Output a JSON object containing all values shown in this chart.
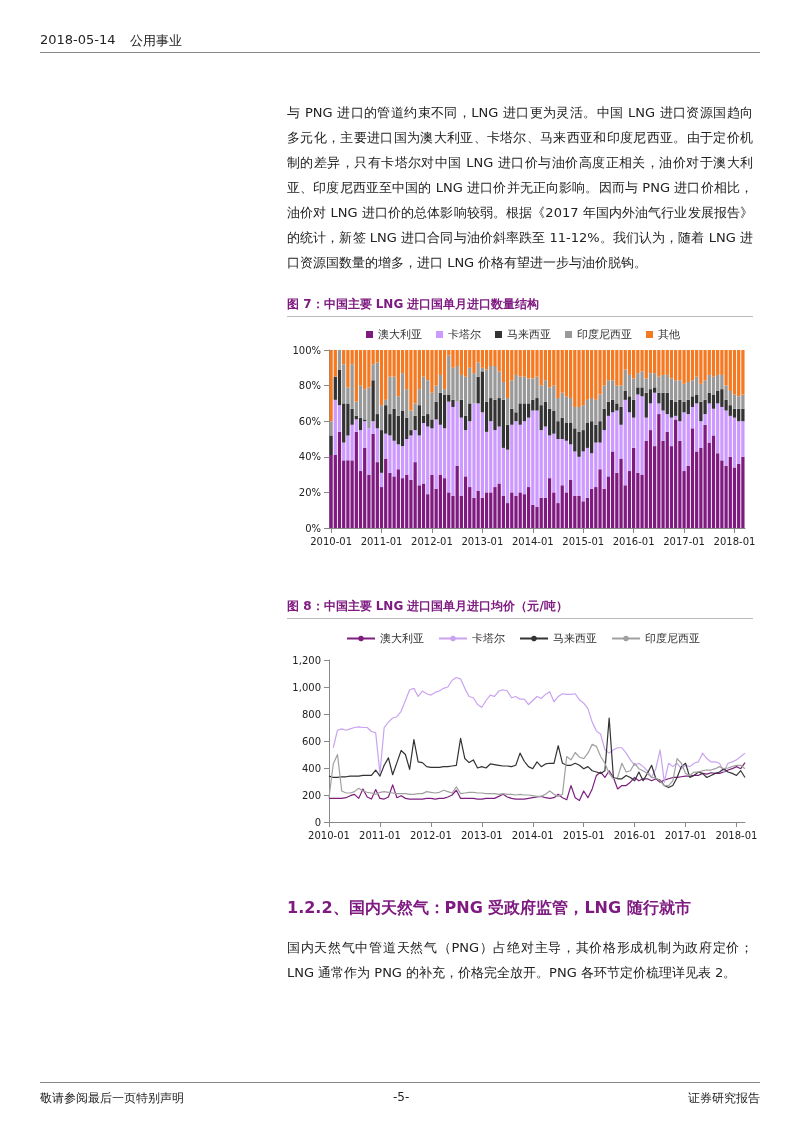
{
  "chart_data": [
    {
      "type": "bar",
      "title": "图 7：中国主要 LNG 进口国单月进口数量结构",
      "stacked": true,
      "legend": "top",
      "annotations": [
        "2018-05-14",
        "公用事业",
        "与 PNG 进口的管道约束不同，LNG 进口更为灵活。中国 LNG 进口资源国趋向多元化，主要进口国为澳大利亚、卡塔尔、马来西亚和印度尼西亚。由于定价机制的差异，只有卡塔尔对中国 LNG 进口价与油价高度正相关，油价对于澳大利亚、印度尼西亚至中国的 LNG 进口价并无正向影响。因而与 PNG 进口价相比，油价对 LNG 进口价的总体影响较弱。根据《2017 年国内外油气行业发展报告》的统计，新签 LNG 进口合同与油价斜率跌至 11-12%。我们认为，随着 LNG 进口资源国数量的增多，进口 LNG 价格有望进一步与油价脱钩。"
      ],
      "categories": [
        "2010-01",
        null,
        null,
        null,
        null,
        null,
        null,
        null,
        null,
        null,
        null,
        null,
        "2011-01",
        null,
        null,
        null,
        null,
        null,
        null,
        null,
        null,
        null,
        null,
        null,
        "2012-01",
        null,
        null,
        null,
        null,
        null,
        null,
        null,
        null,
        null,
        null,
        null,
        "2013-01",
        null,
        null,
        null,
        null,
        null,
        null,
        null,
        null,
        null,
        null,
        null,
        "2014-01",
        null,
        null,
        null,
        null,
        null,
        null,
        null,
        null,
        null,
        null,
        null,
        "2015-01",
        null,
        null,
        null,
        null,
        null,
        null,
        null,
        null,
        null,
        null,
        null,
        "2016-01",
        null,
        null,
        null,
        null,
        null,
        null,
        null,
        null,
        null,
        null,
        null,
        "2017-01",
        null,
        null,
        null,
        null,
        null,
        null,
        null,
        null,
        null,
        null,
        null,
        "2018-01",
        null,
        null
      ],
      "ylim": [
        0,
        100
      ],
      "yticks": [
        {
          "value": 0,
          "label": "0%"
        },
        {
          "value": 20,
          "label": "20%"
        },
        {
          "value": 40,
          "label": "40%"
        },
        {
          "value": 60,
          "label": "60%"
        },
        {
          "value": 80,
          "label": "80%"
        },
        {
          "value": 100,
          "label": "100%"
        }
      ],
      "series": [
        {
          "name": "澳大利亚",
          "color": "#7e1a80",
          "values": [
            41,
            41,
            54,
            38,
            38,
            38,
            54,
            32,
            45,
            30,
            53,
            37,
            23,
            39,
            31,
            29,
            33,
            28,
            30,
            27,
            37,
            24,
            25,
            19,
            30,
            22,
            30,
            28,
            20,
            18,
            35,
            18,
            29,
            23,
            17,
            21,
            17,
            20,
            20,
            23,
            25,
            18,
            14,
            20,
            18,
            20,
            19,
            23,
            13,
            12,
            17,
            17,
            28,
            20,
            14,
            24,
            20,
            27,
            18,
            18,
            15,
            17,
            22,
            23,
            33,
            22,
            29,
            43,
            31,
            39,
            24,
            32,
            45,
            31,
            30,
            49,
            55,
            46,
            64,
            49,
            54,
            46,
            61,
            49,
            32,
            35,
            56,
            43,
            45,
            58,
            48,
            52,
            42,
            38,
            35,
            40,
            34,
            36,
            40
          ]
        },
        {
          "name": "卡塔尔",
          "color": "#cc99ff",
          "values": [
            0,
            31,
            15,
            10,
            14,
            20,
            7,
            23,
            15,
            26,
            7,
            19,
            8,
            14,
            21,
            20,
            14,
            18,
            20,
            25,
            18,
            28,
            34,
            38,
            26,
            39,
            28,
            28,
            51,
            50,
            36,
            44,
            26,
            37,
            53,
            49,
            48,
            34,
            40,
            32,
            32,
            27,
            30,
            38,
            42,
            38,
            41,
            39,
            53,
            54,
            38,
            40,
            24,
            33,
            36,
            26,
            29,
            20,
            25,
            22,
            28,
            28,
            20,
            25,
            15,
            33,
            34,
            22,
            35,
            19,
            48,
            33,
            17,
            44,
            44,
            13,
            15,
            30,
            6,
            17,
            10,
            16,
            2,
            11,
            33,
            29,
            12,
            27,
            15,
            6,
            22,
            15,
            28,
            30,
            31,
            23,
            28,
            24,
            20
          ]
        },
        {
          "name": "马来西亚",
          "color": "#333333",
          "values": [
            11,
            13,
            20,
            22,
            18,
            9,
            2,
            7,
            1,
            0,
            23,
            8,
            24,
            16,
            12,
            18,
            16,
            20,
            12,
            3,
            8,
            17,
            4,
            7,
            5,
            10,
            18,
            19,
            4,
            4,
            0,
            10,
            8,
            10,
            0,
            15,
            23,
            17,
            13,
            17,
            16,
            27,
            14,
            9,
            5,
            12,
            10,
            8,
            6,
            7,
            14,
            14,
            15,
            13,
            10,
            12,
            10,
            12,
            13,
            14,
            12,
            14,
            18,
            10,
            12,
            12,
            8,
            7,
            4,
            10,
            5,
            9,
            10,
            4,
            5,
            14,
            8,
            3,
            6,
            10,
            12,
            10,
            8,
            12,
            6,
            8,
            6,
            5,
            11,
            8,
            6,
            8,
            7,
            10,
            6,
            6,
            5,
            7,
            7
          ]
        },
        {
          "name": "印度尼西亚",
          "color": "#999999",
          "values": [
            8,
            0,
            11,
            22,
            9,
            25,
            8,
            18,
            17,
            23,
            9,
            29,
            14,
            3,
            21,
            18,
            11,
            21,
            16,
            11,
            7,
            9,
            22,
            19,
            15,
            9,
            10,
            3,
            22,
            18,
            20,
            14,
            22,
            20,
            17,
            8,
            2,
            18,
            18,
            19,
            15,
            10,
            15,
            16,
            21,
            15,
            15,
            14,
            12,
            12,
            11,
            12,
            12,
            14,
            13,
            14,
            15,
            14,
            12,
            14,
            14,
            13,
            13,
            14,
            15,
            13,
            12,
            11,
            10,
            12,
            12,
            12,
            12,
            8,
            9,
            8,
            9,
            8,
            9,
            10,
            10,
            12,
            12,
            11,
            10,
            10,
            9,
            10,
            10,
            11,
            10,
            10,
            9,
            8,
            8,
            8,
            8,
            7,
            8
          ]
        },
        {
          "name": "其他",
          "color": "#f47920",
          "values": [
            40,
            15,
            0,
            8,
            21,
            8,
            29,
            20,
            22,
            21,
            8,
            7,
            31,
            28,
            15,
            15,
            26,
            13,
            22,
            34,
            30,
            22,
            15,
            17,
            24,
            20,
            14,
            22,
            3,
            10,
            9,
            14,
            15,
            10,
            13,
            7,
            10,
            11,
            9,
            9,
            12,
            18,
            27,
            17,
            14,
            15,
            15,
            16,
            16,
            15,
            20,
            17,
            21,
            20,
            27,
            24,
            26,
            27,
            32,
            32,
            31,
            28,
            27,
            28,
            25,
            20,
            17,
            17,
            20,
            20,
            11,
            14,
            16,
            13,
            12,
            16,
            13,
            13,
            15,
            14,
            14,
            16,
            17,
            17,
            19,
            18,
            17,
            15,
            19,
            17,
            14,
            15,
            14,
            14,
            20,
            23,
            25,
            26,
            25
          ]
        }
      ]
    },
    {
      "type": "line",
      "title": "图 8：中国主要 LNG 进口国单月进口均价（元/吨）",
      "legend": "top",
      "marker": "none",
      "annotations": [
        "1.2.2、国内天然气：PNG 受政府监管，LNG 随行就市",
        "国内天然气中管道天然气（PNG）占绝对主导，其价格形成机制为政府定价；LNG 通常作为 PNG 的补充，价格完全放开。PNG 各环节定价梳理详见表 2。",
        "敬请参阅最后一页特别声明",
        "-5-",
        "证券研究报告"
      ],
      "categories": [
        "2010-01",
        null,
        null,
        null,
        null,
        null,
        null,
        null,
        null,
        null,
        null,
        null,
        "2011-01",
        null,
        null,
        null,
        null,
        null,
        null,
        null,
        null,
        null,
        null,
        null,
        "2012-01",
        null,
        null,
        null,
        null,
        null,
        null,
        null,
        null,
        null,
        null,
        null,
        "2013-01",
        null,
        null,
        null,
        null,
        null,
        null,
        null,
        null,
        null,
        null,
        null,
        "2014-01",
        null,
        null,
        null,
        null,
        null,
        null,
        null,
        null,
        null,
        null,
        null,
        "2015-01",
        null,
        null,
        null,
        null,
        null,
        null,
        null,
        null,
        null,
        null,
        null,
        "2016-01",
        null,
        null,
        null,
        null,
        null,
        null,
        null,
        null,
        null,
        null,
        null,
        "2017-01",
        null,
        null,
        null,
        null,
        null,
        null,
        null,
        null,
        null,
        null,
        null,
        "2018-01",
        null,
        null
      ],
      "ylim": [
        0,
        1200
      ],
      "yticks": [
        0,
        200,
        400,
        600,
        800,
        {
          "value": 1000,
          "label": "1,000"
        },
        {
          "value": 1200,
          "label": "1,200"
        }
      ],
      "series": [
        {
          "name": "澳大利亚",
          "color": "#7e1f80",
          "values": [
            175,
            175,
            175,
            175,
            180,
            195,
            205,
            175,
            245,
            185,
            170,
            240,
            175,
            170,
            185,
            275,
            180,
            195,
            175,
            170,
            170,
            170,
            170,
            175,
            175,
            170,
            175,
            175,
            185,
            200,
            235,
            175,
            175,
            175,
            175,
            170,
            170,
            175,
            175,
            175,
            190,
            205,
            185,
            175,
            170,
            170,
            170,
            175,
            180,
            185,
            190,
            180,
            175,
            180,
            205,
            180,
            165,
            270,
            180,
            160,
            230,
            180,
            245,
            345,
            370,
            330,
            380,
            330,
            245,
            270,
            270,
            295,
            330,
            305,
            320,
            320,
            305,
            320,
            295,
            310,
            320,
            330,
            330,
            335,
            340,
            340,
            345,
            345,
            360,
            355,
            365,
            360,
            360,
            370,
            385,
            395,
            410,
            395,
            440
          ]
        },
        {
          "name": "卡塔尔",
          "color": "#c9a3f0",
          "values": [
            null,
            550,
            680,
            690,
            680,
            690,
            700,
            705,
            700,
            700,
            670,
            660,
            360,
            700,
            740,
            770,
            780,
            820,
            900,
            980,
            990,
            930,
            970,
            950,
            940,
            960,
            970,
            990,
            1000,
            1050,
            1070,
            1060,
            990,
            930,
            920,
            870,
            850,
            900,
            940,
            930,
            970,
            980,
            970,
            920,
            930,
            910,
            910,
            870,
            900,
            930,
            915,
            945,
            965,
            890,
            930,
            950,
            945,
            945,
            950,
            905,
            880,
            840,
            740,
            675,
            650,
            535,
            510,
            535,
            550,
            550,
            510,
            460,
            420,
            435,
            410,
            380,
            330,
            395,
            535,
            295,
            435,
            410,
            435,
            395,
            420,
            410,
            435,
            445,
            510,
            470,
            445,
            445,
            435,
            370,
            435,
            445,
            460,
            485,
            510
          ]
        },
        {
          "name": "马来西亚",
          "color": "#333333",
          "values": [
            340,
            330,
            330,
            335,
            335,
            340,
            340,
            340,
            345,
            345,
            345,
            385,
            340,
            420,
            475,
            350,
            440,
            530,
            500,
            390,
            610,
            445,
            440,
            410,
            405,
            405,
            405,
            410,
            410,
            415,
            420,
            620,
            470,
            440,
            460,
            400,
            410,
            400,
            430,
            425,
            420,
            415,
            415,
            410,
            420,
            510,
            450,
            410,
            395,
            445,
            410,
            430,
            435,
            435,
            565,
            435,
            420,
            420,
            435,
            420,
            395,
            410,
            380,
            370,
            360,
            380,
            770,
            330,
            320,
            320,
            345,
            330,
            305,
            370,
            305,
            360,
            420,
            320,
            310,
            270,
            255,
            270,
            330,
            410,
            435,
            330,
            345,
            370,
            360,
            330,
            345,
            360,
            370,
            395,
            370,
            360,
            345,
            380,
            330
          ]
        },
        {
          "name": "印度尼西亚",
          "color": "#a0a0a0",
          "values": [
            180,
            430,
            500,
            230,
            215,
            215,
            225,
            250,
            230,
            220,
            215,
            205,
            220,
            225,
            220,
            215,
            210,
            210,
            210,
            205,
            205,
            210,
            210,
            225,
            220,
            215,
            220,
            235,
            225,
            215,
            260,
            210,
            215,
            220,
            220,
            215,
            215,
            210,
            210,
            210,
            205,
            210,
            205,
            205,
            200,
            205,
            200,
            200,
            195,
            190,
            190,
            205,
            230,
            205,
            190,
            205,
            485,
            460,
            515,
            480,
            470,
            510,
            575,
            560,
            485,
            435,
            360,
            320,
            330,
            435,
            370,
            380,
            435,
            395,
            380,
            360,
            330,
            325,
            305,
            270,
            270,
            305,
            470,
            435,
            360,
            345,
            370,
            370,
            380,
            385,
            385,
            395,
            410,
            395,
            400,
            410,
            420,
            420,
            395
          ]
        }
      ]
    }
  ]
}
